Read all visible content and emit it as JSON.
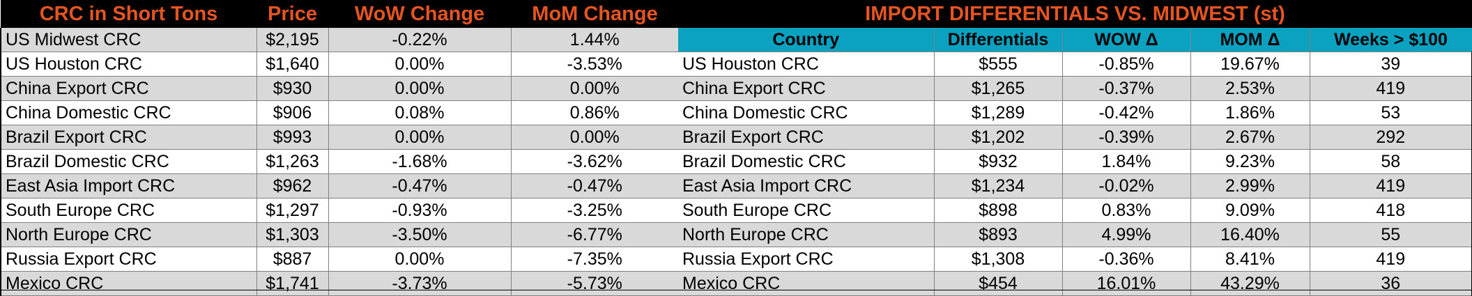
{
  "left": {
    "headers": [
      "CRC in Short Tons",
      "Price",
      "WoW Change",
      "MoM Change"
    ],
    "rows": [
      [
        "US Midwest CRC",
        "$2,195",
        "-0.22%",
        "1.44%"
      ],
      [
        "US Houston CRC",
        "$1,640",
        "0.00%",
        "-3.53%"
      ],
      [
        "China Export CRC",
        "$930",
        "0.00%",
        "0.00%"
      ],
      [
        "China Domestic CRC",
        "$906",
        "0.08%",
        "0.86%"
      ],
      [
        "Brazil Export CRC",
        "$993",
        "0.00%",
        "0.00%"
      ],
      [
        "Brazil Domestic CRC",
        "$1,263",
        "-1.68%",
        "-3.62%"
      ],
      [
        "East Asia Import CRC",
        "$962",
        "-0.47%",
        "-0.47%"
      ],
      [
        "South Europe CRC",
        "$1,297",
        "-0.93%",
        "-3.25%"
      ],
      [
        "North Europe CRC",
        "$1,303",
        "-3.50%",
        "-6.77%"
      ],
      [
        "Russia Export CRC",
        "$887",
        "0.00%",
        "-7.35%"
      ],
      [
        "Mexico CRC",
        "$1,741",
        "-3.73%",
        "-5.73%"
      ]
    ]
  },
  "right": {
    "title": "IMPORT DIFFERENTIALS VS. MIDWEST (st)",
    "headers": [
      "Country",
      "Differentials",
      "WOW Δ",
      "MOM Δ",
      "Weeks > $100"
    ],
    "rows": [
      [
        "US Houston CRC",
        "$555",
        "-0.85%",
        "19.67%",
        "39"
      ],
      [
        "China Export CRC",
        "$1,265",
        "-0.37%",
        "2.53%",
        "419"
      ],
      [
        "China Domestic CRC",
        "$1,289",
        "-0.42%",
        "1.86%",
        "53"
      ],
      [
        "Brazil Export CRC",
        "$1,202",
        "-0.39%",
        "2.67%",
        "292"
      ],
      [
        "Brazil Domestic CRC",
        "$932",
        "1.84%",
        "9.23%",
        "58"
      ],
      [
        "East Asia Import CRC",
        "$1,234",
        "-0.02%",
        "2.99%",
        "419"
      ],
      [
        "South Europe CRC",
        "$898",
        "0.83%",
        "9.09%",
        "418"
      ],
      [
        "North Europe CRC",
        "$893",
        "4.99%",
        "16.40%",
        "55"
      ],
      [
        "Russia Export CRC",
        "$1,308",
        "-0.36%",
        "8.41%",
        "419"
      ],
      [
        "Mexico CRC",
        "$454",
        "16.01%",
        "43.29%",
        "36"
      ]
    ]
  },
  "colors": {
    "header_bg": "#000000",
    "header_text": "#e65520",
    "subheader_bg": "#0aa2c0",
    "row_gray": "#d9d9d9",
    "row_white": "#ffffff"
  }
}
